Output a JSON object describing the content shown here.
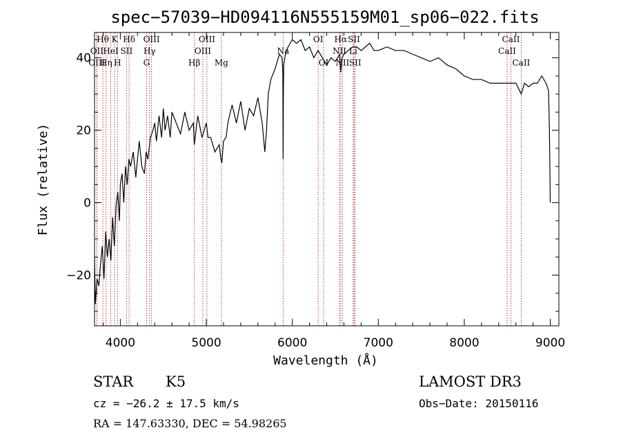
{
  "chart_data": {
    "type": "line",
    "title": "spec−57039−HD094116N555159M01_sp06−022.fits",
    "xlabel": "Wavelength (Å)",
    "ylabel": "Flux (relative)",
    "xlim": [
      3700,
      9100
    ],
    "ylim": [
      -34,
      47
    ],
    "x_ticks": [
      4000,
      5000,
      6000,
      7000,
      8000,
      9000
    ],
    "y_ticks": [
      -20,
      0,
      20,
      40
    ],
    "grid": false,
    "legend": "none",
    "series": [
      {
        "x": [
          3700,
          3710,
          3730,
          3750,
          3770,
          3790,
          3810,
          3830,
          3850,
          3870,
          3890,
          3910,
          3930,
          3950,
          3970,
          3990,
          4000,
          4020,
          4040,
          4060,
          4080,
          4100,
          4120,
          4150,
          4180,
          4200,
          4220,
          4250,
          4280,
          4300,
          4320,
          4350,
          4380,
          4400,
          4420,
          4450,
          4480,
          4500,
          4520,
          4550,
          4580,
          4600,
          4650,
          4700,
          4750,
          4800,
          4850,
          4860,
          4880,
          4900,
          4950,
          5000,
          5020,
          5050,
          5100,
          5150,
          5170,
          5180,
          5200,
          5230,
          5250,
          5300,
          5350,
          5400,
          5450,
          5500,
          5550,
          5600,
          5650,
          5680,
          5700,
          5720,
          5750,
          5800,
          5850,
          5880,
          5890,
          5893,
          5896,
          5900,
          5920,
          5950,
          6000,
          6050,
          6100,
          6150,
          6200,
          6250,
          6300,
          6350,
          6400,
          6450,
          6500,
          6550,
          6563,
          6580,
          6600,
          6650,
          6700,
          6750,
          6800,
          6850,
          6900,
          6950,
          7000,
          7100,
          7200,
          7300,
          7400,
          7500,
          7600,
          7700,
          7800,
          7900,
          8000,
          8100,
          8200,
          8300,
          8400,
          8500,
          8542,
          8600,
          8662,
          8700,
          8750,
          8800,
          8850,
          8900,
          8950,
          8980,
          8990,
          9000
        ],
        "y": [
          -15,
          -28,
          -21,
          -23,
          -17,
          -12,
          -21,
          -8,
          -15,
          -10,
          -16,
          -4,
          -12,
          -1,
          3,
          -5,
          5,
          8,
          0,
          10,
          5,
          12,
          10,
          14,
          7,
          12,
          17,
          10,
          8,
          14,
          12,
          18,
          20,
          22,
          17,
          24,
          18,
          26,
          20,
          24,
          18,
          25,
          22,
          19,
          25,
          20,
          22,
          16,
          20,
          24,
          18,
          22,
          18,
          18,
          14,
          16,
          12,
          11,
          17,
          18,
          22,
          27,
          22,
          28,
          20,
          26,
          24,
          29,
          22,
          14,
          20,
          30,
          34,
          37,
          41,
          40,
          36,
          12,
          30,
          38,
          41,
          43,
          45,
          44,
          45,
          42,
          43,
          40,
          42,
          40,
          38,
          40,
          39,
          41,
          36,
          40,
          41,
          42,
          43,
          43,
          42,
          43,
          44,
          42,
          42,
          43,
          42,
          42,
          41,
          40,
          39,
          40,
          38,
          37,
          35,
          34,
          34,
          33,
          33,
          33,
          33,
          33,
          30,
          33,
          32,
          33,
          33,
          35,
          33,
          31,
          20,
          0
        ]
      }
    ],
    "spectral_lines": [
      {
        "label": "Hθ",
        "x": 3797,
        "row": 0
      },
      {
        "label": "OII",
        "x": 3727,
        "row": 1
      },
      {
        "label": "OIII",
        "x": 3727,
        "row": 2
      },
      {
        "label": "Hη",
        "x": 3835,
        "row": 2
      },
      {
        "label": "HeI",
        "x": 3889,
        "row": 1
      },
      {
        "label": "K",
        "x": 3934,
        "row": 0
      },
      {
        "label": "SII",
        "x": 4072,
        "row": 1
      },
      {
        "label": "H",
        "x": 3968,
        "row": 2
      },
      {
        "label": "Hδ",
        "x": 4102,
        "row": 0
      },
      {
        "label": "OIII",
        "x": 4363,
        "row": 0
      },
      {
        "label": "Hγ",
        "x": 4340,
        "row": 1
      },
      {
        "label": "G",
        "x": 4305,
        "row": 2
      },
      {
        "label": "Hβ",
        "x": 4861,
        "row": 2
      },
      {
        "label": "OIII",
        "x": 5007,
        "row": 0
      },
      {
        "label": "OIII",
        "x": 4959,
        "row": 1
      },
      {
        "label": "Mg",
        "x": 5175,
        "row": 2
      },
      {
        "label": "Na",
        "x": 5893,
        "row": 1
      },
      {
        "label": "OI",
        "x": 6300,
        "row": 0
      },
      {
        "label": "OI",
        "x": 6364,
        "row": 2
      },
      {
        "label": "Hα",
        "x": 6563,
        "row": 0
      },
      {
        "label": "NII",
        "x": 6548,
        "row": 1
      },
      {
        "label": "NII",
        "x": 6583,
        "row": 2
      },
      {
        "label": "SII",
        "x": 6717,
        "row": 0
      },
      {
        "label": "Li",
        "x": 6708,
        "row": 1
      },
      {
        "label": "SII",
        "x": 6731,
        "row": 2
      },
      {
        "label": "CaII",
        "x": 8542,
        "row": 0
      },
      {
        "label": "CaII",
        "x": 8498,
        "row": 1
      },
      {
        "label": "CaII",
        "x": 8662,
        "row": 2
      }
    ]
  },
  "info": {
    "class": "STAR",
    "subclass": "K5",
    "survey": "LAMOST DR3",
    "cz": "cz = −26.2 ± 17.5 km/s",
    "obs_date": "Obs−Date: 20150116",
    "coords": "RA = 147.63330, DEC =  54.98265"
  }
}
